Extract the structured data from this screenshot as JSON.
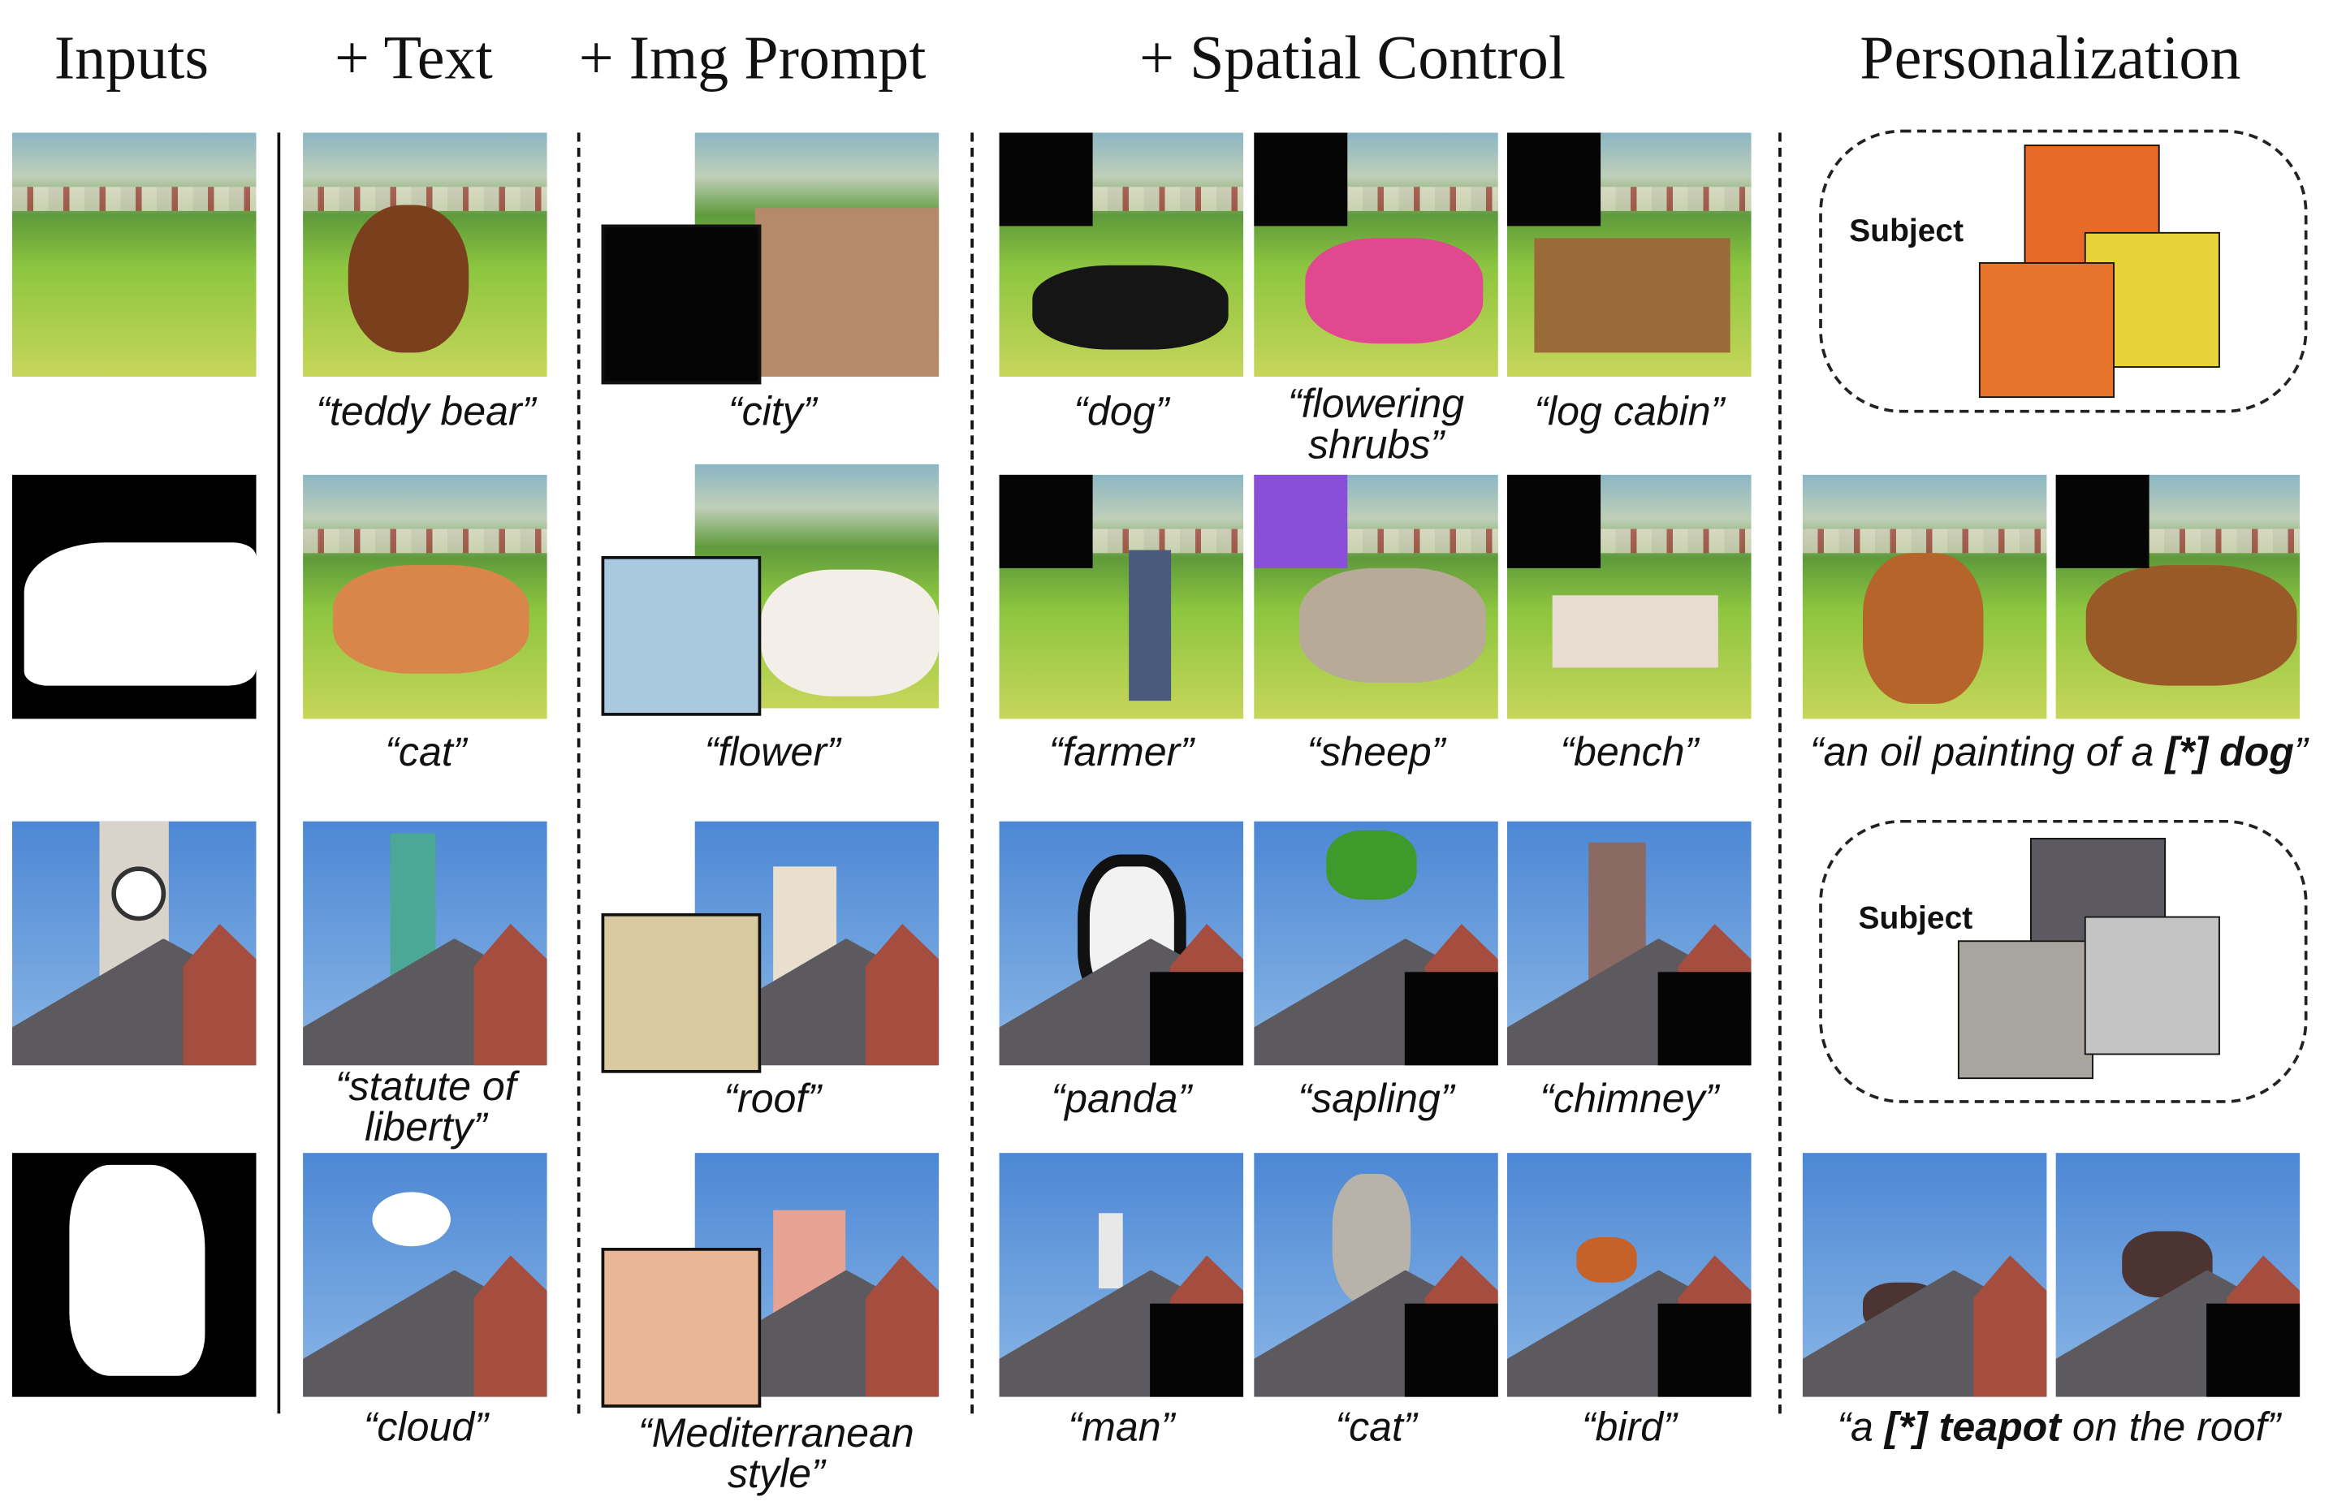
{
  "headers": {
    "inputs": "Inputs",
    "text": "+ Text",
    "img_prompt": "+ Img Prompt",
    "spatial": "+ Spatial Control",
    "personalization": "Personalization"
  },
  "captions": {
    "text": [
      "“teddy bear”",
      "“cat”",
      "“statute of liberty”",
      "“cloud”"
    ],
    "img_prompt": [
      "“city”",
      "“flower”",
      "“roof”",
      "“Mediterranean style”"
    ],
    "spatial": [
      [
        "“dog”",
        "“flowering shrubs”",
        "“log cabin”"
      ],
      [
        "“farmer”",
        "“sheep”",
        "“bench”"
      ],
      [
        "“panda”",
        "“sapling”",
        "“chimney”"
      ],
      [
        "“man”",
        "“cat”",
        "“bird”"
      ]
    ],
    "personalization_dog": {
      "pre": "“an oil painting of a ",
      "bold": "[*] dog",
      "post": "”"
    },
    "personalization_teapot": {
      "pre": "“a ",
      "bold": "[*] teapot",
      "post": " on the roof”"
    }
  },
  "subject_label": "Subject",
  "colors": {
    "sky": "#4d87d4",
    "brick": "#a54d3e",
    "roof": "#5d5a5f",
    "grass": "#8cc53f",
    "mask": "#000000"
  }
}
